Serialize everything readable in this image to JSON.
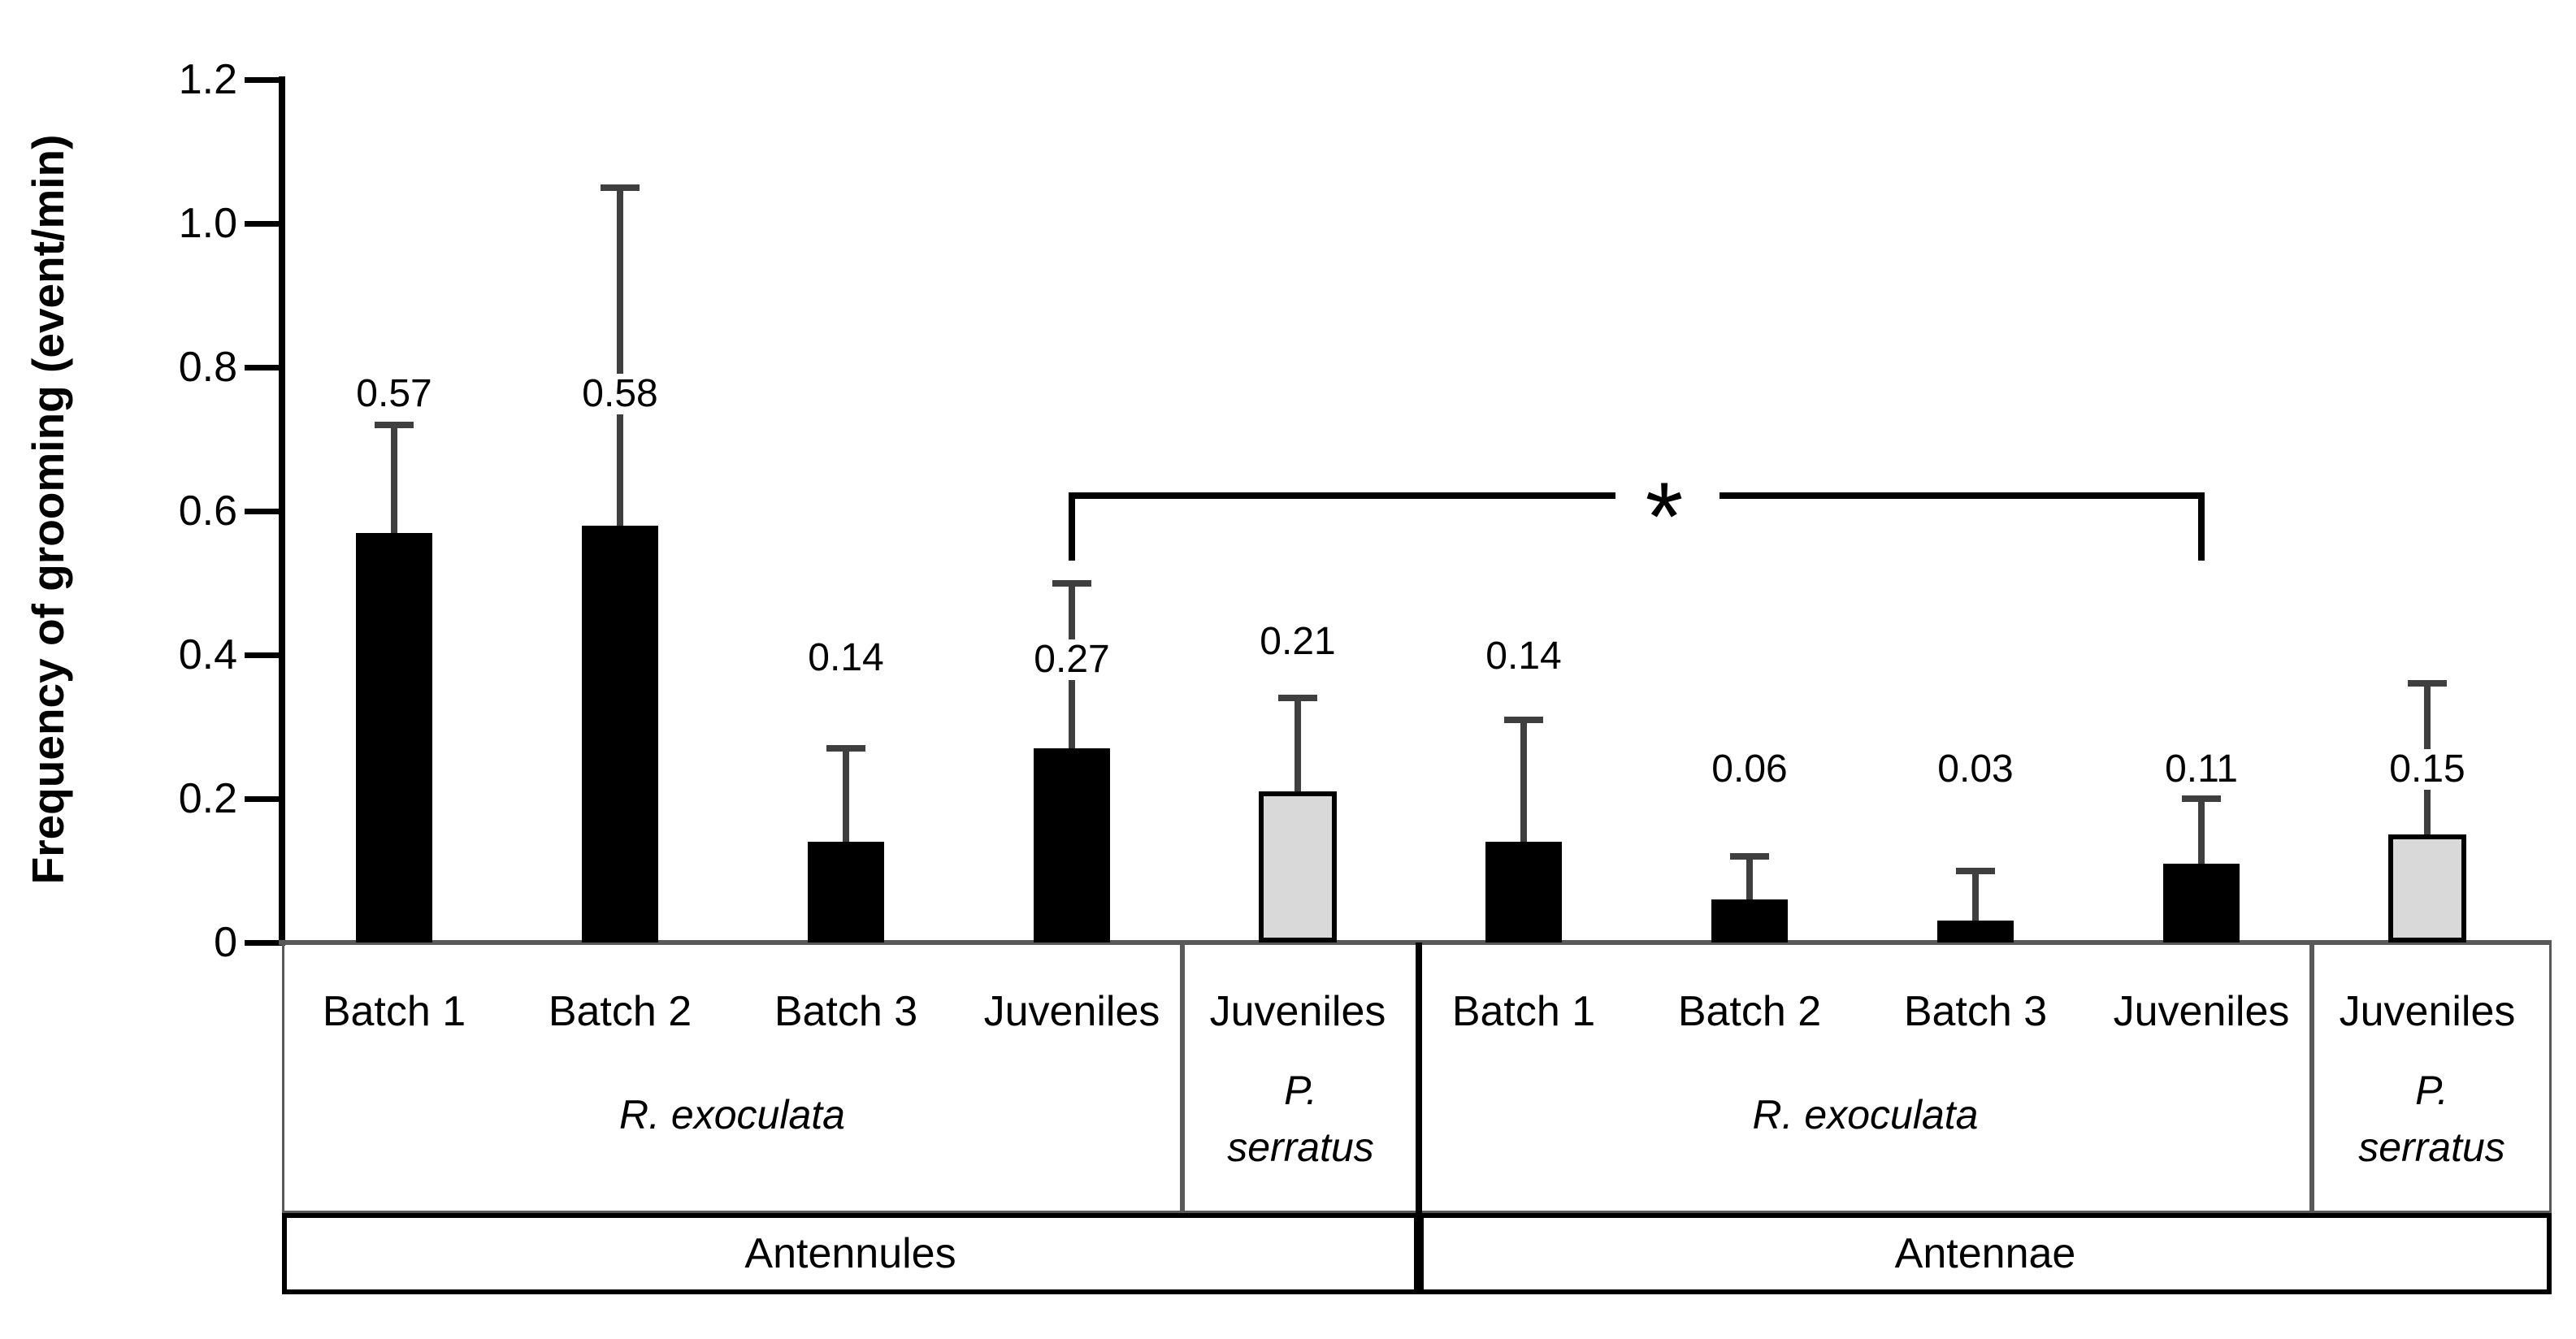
{
  "colors": {
    "background": "#ffffff",
    "bar_black": "#000000",
    "bar_gray_fill": "#d9d9d9",
    "bar_gray_border": "#000000",
    "error_bar": "#3f3f3f",
    "axis": "#000000",
    "baseline": "#595959",
    "inner_box_border": "#595959",
    "outer_box_border": "#000000",
    "text": "#000000"
  },
  "chart_data": {
    "type": "bar",
    "title": "",
    "ylabel": "Frequency of grooming (event/min)",
    "xlabel": "",
    "ylim": [
      0,
      1.2
    ],
    "grid": false,
    "legend": false,
    "yticks": [
      {
        "value": 1.2,
        "label": "1.2"
      },
      {
        "value": 1.0,
        "label": "1.0"
      },
      {
        "value": 0.8,
        "label": "0.8"
      },
      {
        "value": 0.6,
        "label": "0.6"
      },
      {
        "value": 0.4,
        "label": "0.4"
      },
      {
        "value": 0.2,
        "label": "0.2"
      },
      {
        "value": 0.0,
        "label": "0"
      }
    ],
    "bars": [
      {
        "category": "Batch 1",
        "species": "R. exoculata",
        "appendage": "Antennules",
        "value": 0.57,
        "value_label": "0.57",
        "error_top": 0.72,
        "style": "black"
      },
      {
        "category": "Batch 2",
        "species": "R. exoculata",
        "appendage": "Antennules",
        "value": 0.58,
        "value_label": "0.58",
        "error_top": 1.05,
        "style": "black"
      },
      {
        "category": "Batch 3",
        "species": "R. exoculata",
        "appendage": "Antennules",
        "value": 0.14,
        "value_label": "0.14",
        "error_top": 0.27,
        "style": "black"
      },
      {
        "category": "Juveniles",
        "species": "R. exoculata",
        "appendage": "Antennules",
        "value": 0.27,
        "value_label": "0.27",
        "error_top": 0.5,
        "style": "black"
      },
      {
        "category": "Juveniles",
        "species": "P. serratus",
        "appendage": "Antennules",
        "value": 0.21,
        "value_label": "0.21",
        "error_top": 0.34,
        "style": "gray"
      },
      {
        "category": "Batch 1",
        "species": "R. exoculata",
        "appendage": "Antennae",
        "value": 0.14,
        "value_label": "0.14",
        "error_top": 0.31,
        "style": "black"
      },
      {
        "category": "Batch 2",
        "species": "R. exoculata",
        "appendage": "Antennae",
        "value": 0.06,
        "value_label": "0.06",
        "error_top": 0.12,
        "style": "black"
      },
      {
        "category": "Batch 3",
        "species": "R. exoculata",
        "appendage": "Antennae",
        "value": 0.03,
        "value_label": "0.03",
        "error_top": 0.1,
        "style": "black"
      },
      {
        "category": "Juveniles",
        "species": "R. exoculata",
        "appendage": "Antennae",
        "value": 0.11,
        "value_label": "0.11",
        "error_top": 0.2,
        "style": "black"
      },
      {
        "category": "Juveniles",
        "species": "P. serratus",
        "appendage": "Antennae",
        "value": 0.15,
        "value_label": "0.15",
        "error_top": 0.36,
        "style": "gray"
      }
    ],
    "species_groups": [
      {
        "label": "R. exoculata",
        "lines": [
          "R. exoculata"
        ],
        "bar_indices": [
          0,
          1,
          2,
          3
        ]
      },
      {
        "label": "P. serratus",
        "lines": [
          "P.",
          "serratus"
        ],
        "bar_indices": [
          4
        ]
      },
      {
        "label": "R. exoculata",
        "lines": [
          "R. exoculata"
        ],
        "bar_indices": [
          5,
          6,
          7,
          8
        ]
      },
      {
        "label": "P. serratus",
        "lines": [
          "P.",
          "serratus"
        ],
        "bar_indices": [
          9
        ]
      }
    ],
    "appendage_groups": [
      {
        "label": "Antennules",
        "bar_indices": [
          0,
          1,
          2,
          3,
          4
        ]
      },
      {
        "label": "Antennae",
        "bar_indices": [
          5,
          6,
          7,
          8,
          9
        ]
      }
    ],
    "significance": {
      "symbol": "*",
      "from_bar_index": 3,
      "to_bar_index": 8
    }
  }
}
